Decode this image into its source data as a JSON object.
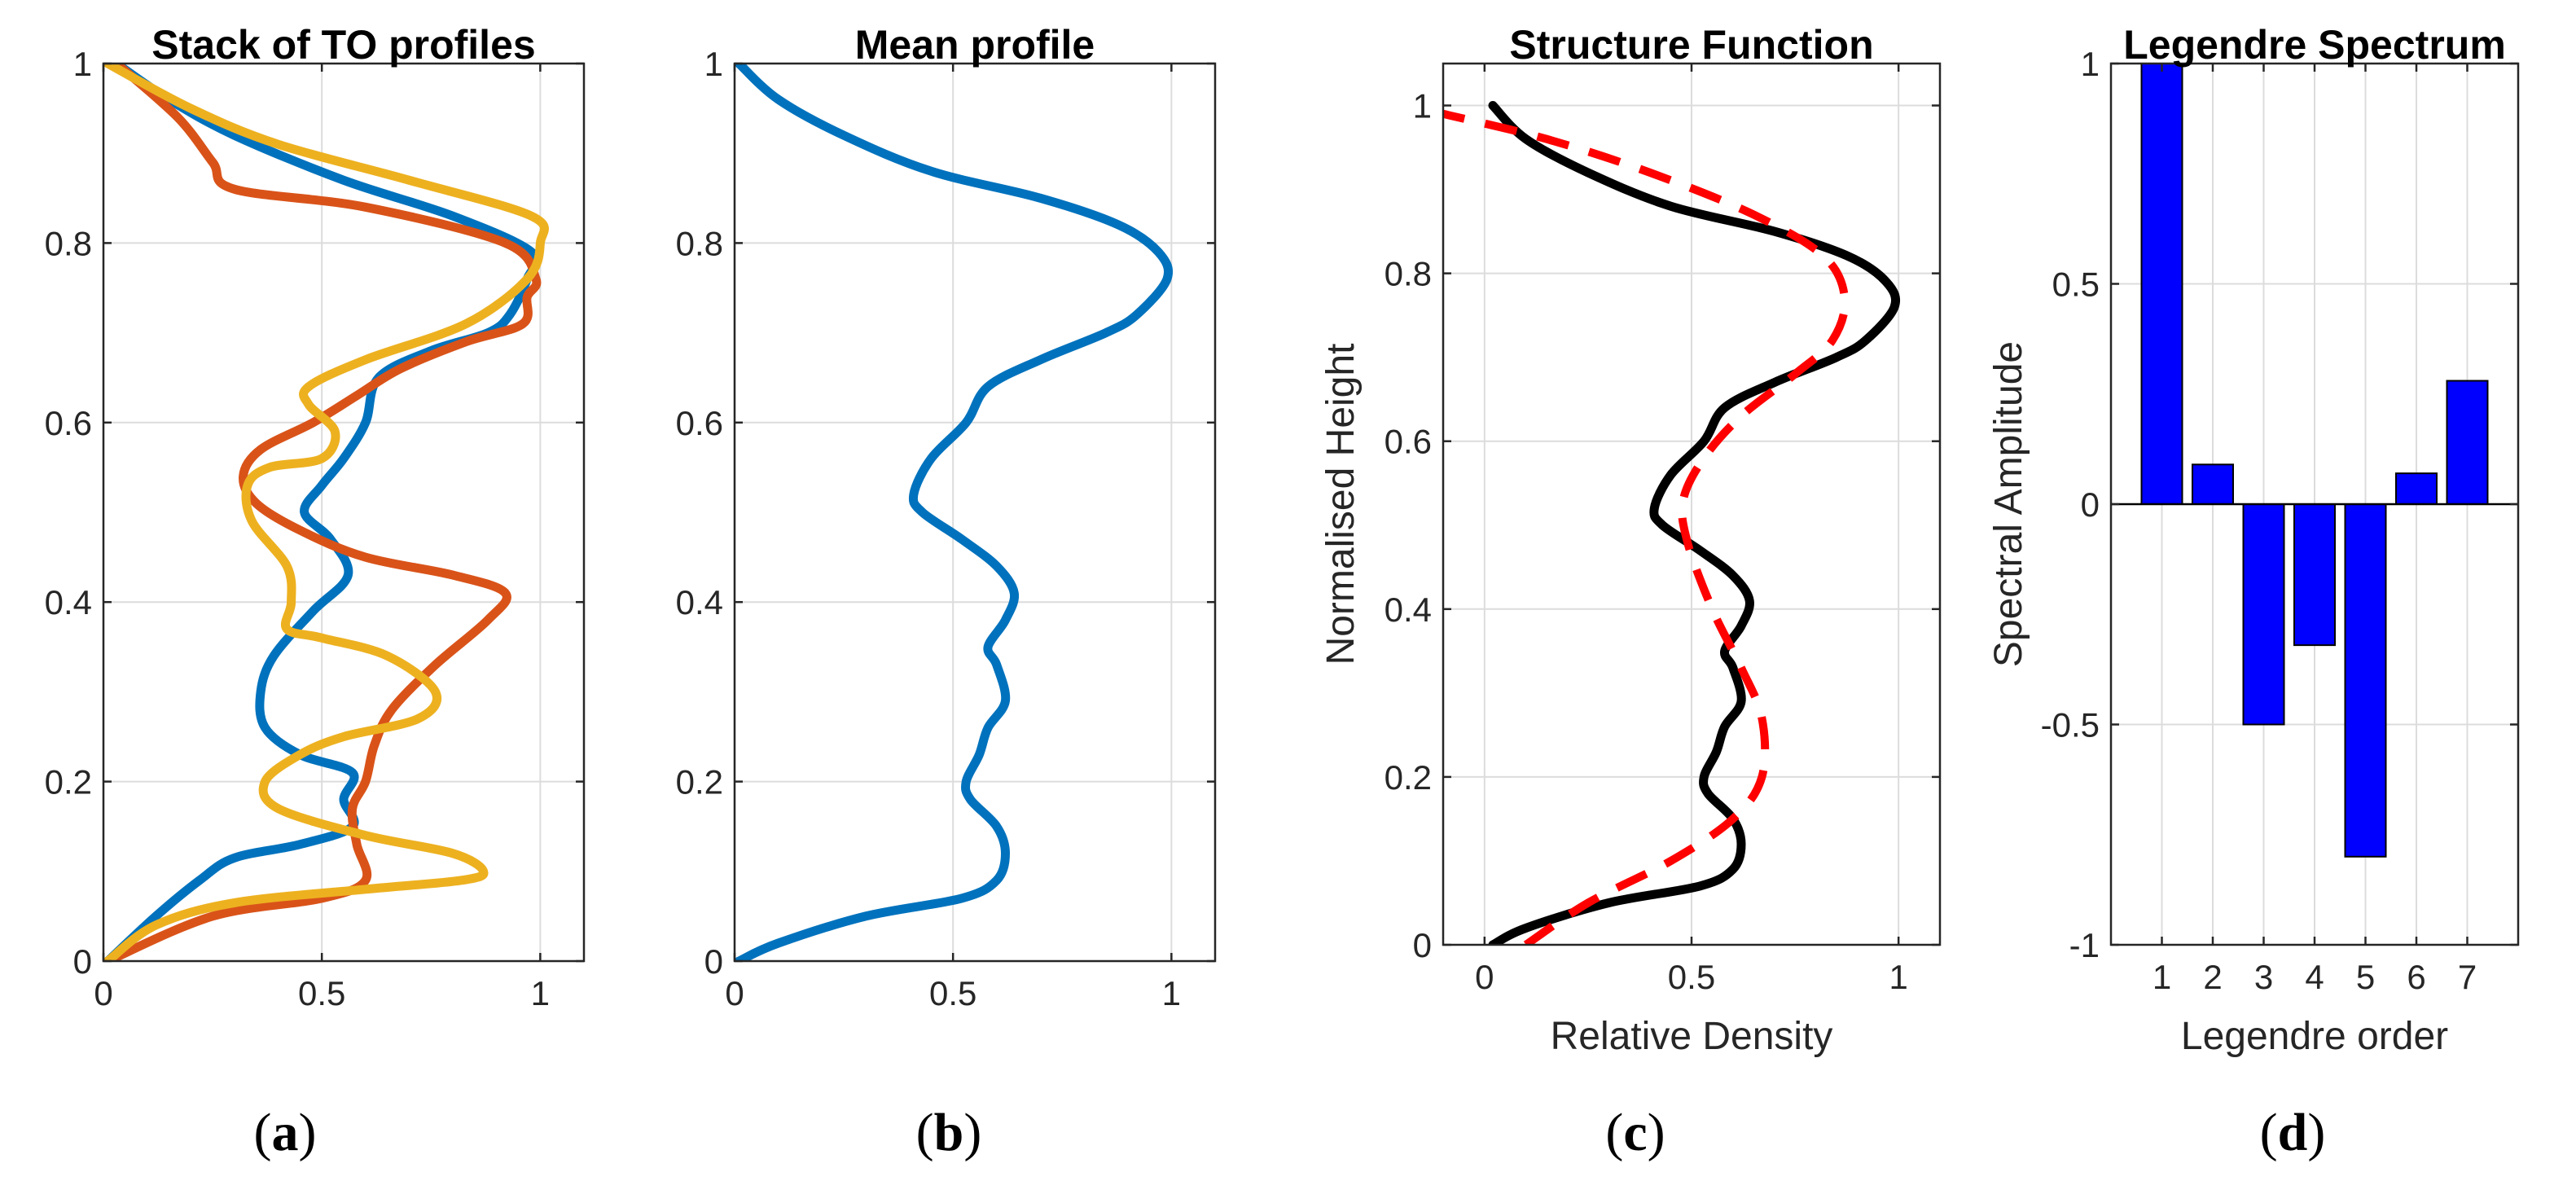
{
  "panel_labels": [
    "a",
    "b",
    "c",
    "d"
  ],
  "colors": {
    "blue": "#0072BD",
    "orange": "#D95319",
    "yellow": "#EDB120",
    "black": "#000000",
    "red_dash": "#FF0000",
    "bar": "#0000FF"
  },
  "chart_data": [
    {
      "type": "line",
      "title": "Stack of TO profiles",
      "xlabel": "",
      "ylabel": "",
      "xlim": [
        0,
        1.1
      ],
      "ylim": [
        0,
        1
      ],
      "xticks": [
        0,
        0.5,
        1
      ],
      "xtick_labels": [
        "0",
        "0.5",
        "1"
      ],
      "yticks": [
        0,
        0.2,
        0.4,
        0.6,
        0.8,
        1
      ],
      "ytick_labels": [
        "0",
        "0.2",
        "0.4",
        "0.6",
        "0.8",
        "1"
      ],
      "grid": true,
      "series": [
        {
          "color": "#0072BD",
          "points": [
            [
              0.01,
              0
            ],
            [
              0.12,
              0.05
            ],
            [
              0.22,
              0.09
            ],
            [
              0.3,
              0.115
            ],
            [
              0.45,
              0.13
            ],
            [
              0.57,
              0.15
            ],
            [
              0.55,
              0.18
            ],
            [
              0.57,
              0.21
            ],
            [
              0.45,
              0.23
            ],
            [
              0.37,
              0.26
            ],
            [
              0.36,
              0.3
            ],
            [
              0.39,
              0.34
            ],
            [
              0.48,
              0.39
            ],
            [
              0.56,
              0.43
            ],
            [
              0.52,
              0.47
            ],
            [
              0.46,
              0.5
            ],
            [
              0.5,
              0.53
            ],
            [
              0.55,
              0.56
            ],
            [
              0.6,
              0.6
            ],
            [
              0.63,
              0.65
            ],
            [
              0.75,
              0.68
            ],
            [
              0.88,
              0.7
            ],
            [
              0.93,
              0.72
            ],
            [
              0.97,
              0.76
            ],
            [
              0.98,
              0.79
            ],
            [
              0.8,
              0.83
            ],
            [
              0.55,
              0.87
            ],
            [
              0.3,
              0.92
            ],
            [
              0.15,
              0.96
            ],
            [
              0.03,
              1
            ]
          ]
        },
        {
          "color": "#D95319",
          "points": [
            [
              0.01,
              0
            ],
            [
              0.25,
              0.05
            ],
            [
              0.5,
              0.07
            ],
            [
              0.6,
              0.09
            ],
            [
              0.58,
              0.13
            ],
            [
              0.57,
              0.17
            ],
            [
              0.6,
              0.2
            ],
            [
              0.62,
              0.24
            ],
            [
              0.66,
              0.28
            ],
            [
              0.76,
              0.33
            ],
            [
              0.88,
              0.38
            ],
            [
              0.92,
              0.41
            ],
            [
              0.8,
              0.43
            ],
            [
              0.6,
              0.45
            ],
            [
              0.45,
              0.48
            ],
            [
              0.35,
              0.51
            ],
            [
              0.32,
              0.54
            ],
            [
              0.36,
              0.57
            ],
            [
              0.48,
              0.6
            ],
            [
              0.58,
              0.63
            ],
            [
              0.68,
              0.66
            ],
            [
              0.83,
              0.69
            ],
            [
              0.96,
              0.71
            ],
            [
              0.97,
              0.74
            ],
            [
              0.99,
              0.76
            ],
            [
              0.92,
              0.8
            ],
            [
              0.6,
              0.84
            ],
            [
              0.3,
              0.86
            ],
            [
              0.25,
              0.89
            ],
            [
              0.17,
              0.94
            ],
            [
              0.03,
              1
            ]
          ]
        },
        {
          "color": "#EDB120",
          "points": [
            [
              0.01,
              0
            ],
            [
              0.12,
              0.04
            ],
            [
              0.3,
              0.065
            ],
            [
              0.6,
              0.08
            ],
            [
              0.82,
              0.09
            ],
            [
              0.87,
              0.1
            ],
            [
              0.8,
              0.12
            ],
            [
              0.6,
              0.14
            ],
            [
              0.4,
              0.17
            ],
            [
              0.37,
              0.2
            ],
            [
              0.45,
              0.23
            ],
            [
              0.55,
              0.25
            ],
            [
              0.72,
              0.27
            ],
            [
              0.76,
              0.3
            ],
            [
              0.65,
              0.34
            ],
            [
              0.5,
              0.36
            ],
            [
              0.42,
              0.37
            ],
            [
              0.43,
              0.4
            ],
            [
              0.42,
              0.44
            ],
            [
              0.34,
              0.49
            ],
            [
              0.33,
              0.53
            ],
            [
              0.38,
              0.55
            ],
            [
              0.5,
              0.56
            ],
            [
              0.53,
              0.59
            ],
            [
              0.47,
              0.62
            ],
            [
              0.47,
              0.64
            ],
            [
              0.6,
              0.67
            ],
            [
              0.83,
              0.71
            ],
            [
              0.97,
              0.76
            ],
            [
              1.0,
              0.8
            ],
            [
              0.98,
              0.83
            ],
            [
              0.7,
              0.87
            ],
            [
              0.4,
              0.91
            ],
            [
              0.2,
              0.95
            ],
            [
              0.01,
              1
            ]
          ]
        }
      ]
    },
    {
      "type": "line",
      "title": "Mean profile",
      "xlabel": "",
      "ylabel": "",
      "xlim": [
        0,
        1.1
      ],
      "ylim": [
        0,
        1
      ],
      "xticks": [
        0,
        0.5,
        1
      ],
      "xtick_labels": [
        "0",
        "0.5",
        "1"
      ],
      "yticks": [
        0,
        0.2,
        0.4,
        0.6,
        0.8,
        1
      ],
      "ytick_labels": [
        "0",
        "0.2",
        "0.4",
        "0.6",
        "0.8",
        "1"
      ],
      "grid": true,
      "series": [
        {
          "color": "#0072BD",
          "points": [
            [
              0.01,
              0
            ],
            [
              0.1,
              0.02
            ],
            [
              0.3,
              0.05
            ],
            [
              0.52,
              0.07
            ],
            [
              0.6,
              0.09
            ],
            [
              0.62,
              0.12
            ],
            [
              0.6,
              0.15
            ],
            [
              0.54,
              0.18
            ],
            [
              0.53,
              0.2
            ],
            [
              0.56,
              0.23
            ],
            [
              0.58,
              0.26
            ],
            [
              0.62,
              0.29
            ],
            [
              0.6,
              0.33
            ],
            [
              0.58,
              0.35
            ],
            [
              0.62,
              0.38
            ],
            [
              0.64,
              0.41
            ],
            [
              0.6,
              0.44
            ],
            [
              0.52,
              0.47
            ],
            [
              0.43,
              0.5
            ],
            [
              0.41,
              0.52
            ],
            [
              0.45,
              0.56
            ],
            [
              0.53,
              0.6
            ],
            [
              0.58,
              0.64
            ],
            [
              0.7,
              0.67
            ],
            [
              0.85,
              0.7
            ],
            [
              0.92,
              0.72
            ],
            [
              0.99,
              0.76
            ],
            [
              0.97,
              0.79
            ],
            [
              0.88,
              0.82
            ],
            [
              0.7,
              0.85
            ],
            [
              0.45,
              0.88
            ],
            [
              0.25,
              0.92
            ],
            [
              0.1,
              0.96
            ],
            [
              0.01,
              1
            ]
          ]
        }
      ]
    },
    {
      "type": "line",
      "title": "Structure Function",
      "xlabel": "Relative Density",
      "ylabel": "Normalised Height",
      "xlim": [
        -0.1,
        1.1
      ],
      "ylim": [
        0,
        1.05
      ],
      "xticks": [
        0,
        0.5,
        1
      ],
      "xtick_labels": [
        "0",
        "0.5",
        "1"
      ],
      "yticks": [
        0,
        0.2,
        0.4,
        0.6,
        0.8,
        1
      ],
      "ytick_labels": [
        "0",
        "0.2",
        "0.4",
        "0.6",
        "0.8",
        "1"
      ],
      "grid": true,
      "series": [
        {
          "color": "#000000",
          "dashed": false,
          "points": [
            [
              0.02,
              0
            ],
            [
              0.1,
              0.02
            ],
            [
              0.3,
              0.05
            ],
            [
              0.52,
              0.07
            ],
            [
              0.6,
              0.09
            ],
            [
              0.62,
              0.12
            ],
            [
              0.6,
              0.15
            ],
            [
              0.54,
              0.18
            ],
            [
              0.53,
              0.2
            ],
            [
              0.56,
              0.23
            ],
            [
              0.58,
              0.26
            ],
            [
              0.62,
              0.29
            ],
            [
              0.6,
              0.33
            ],
            [
              0.58,
              0.35
            ],
            [
              0.62,
              0.38
            ],
            [
              0.64,
              0.41
            ],
            [
              0.6,
              0.44
            ],
            [
              0.52,
              0.47
            ],
            [
              0.43,
              0.5
            ],
            [
              0.41,
              0.52
            ],
            [
              0.45,
              0.56
            ],
            [
              0.53,
              0.6
            ],
            [
              0.58,
              0.64
            ],
            [
              0.7,
              0.67
            ],
            [
              0.85,
              0.7
            ],
            [
              0.92,
              0.72
            ],
            [
              0.99,
              0.76
            ],
            [
              0.97,
              0.79
            ],
            [
              0.88,
              0.82
            ],
            [
              0.7,
              0.85
            ],
            [
              0.45,
              0.88
            ],
            [
              0.25,
              0.92
            ],
            [
              0.1,
              0.96
            ],
            [
              0.02,
              1
            ]
          ]
        },
        {
          "color": "#FF0000",
          "dashed": true,
          "points": [
            [
              0.1,
              0
            ],
            [
              0.25,
              0.05
            ],
            [
              0.45,
              0.1
            ],
            [
              0.6,
              0.15
            ],
            [
              0.67,
              0.2
            ],
            [
              0.67,
              0.27
            ],
            [
              0.62,
              0.33
            ],
            [
              0.55,
              0.4
            ],
            [
              0.49,
              0.48
            ],
            [
              0.48,
              0.53
            ],
            [
              0.53,
              0.58
            ],
            [
              0.62,
              0.63
            ],
            [
              0.75,
              0.68
            ],
            [
              0.84,
              0.72
            ],
            [
              0.87,
              0.77
            ],
            [
              0.82,
              0.82
            ],
            [
              0.65,
              0.87
            ],
            [
              0.4,
              0.92
            ],
            [
              0.15,
              0.96
            ],
            [
              -0.1,
              0.99
            ]
          ]
        }
      ]
    },
    {
      "type": "bar",
      "title": "Legendre Spectrum",
      "xlabel": "Legendre order",
      "ylabel": "Spectral Amplitude",
      "categories": [
        "1",
        "2",
        "3",
        "4",
        "5",
        "6",
        "7"
      ],
      "values": [
        1.0,
        0.09,
        -0.5,
        -0.32,
        -0.8,
        0.07,
        0.28
      ],
      "xlim": [
        0,
        8
      ],
      "ylim": [
        -1,
        1
      ],
      "yticks": [
        -1,
        -0.5,
        0,
        0.5,
        1
      ],
      "ytick_labels": [
        "-1",
        "-0.5",
        "0",
        "0.5",
        "1"
      ],
      "grid": true
    }
  ]
}
